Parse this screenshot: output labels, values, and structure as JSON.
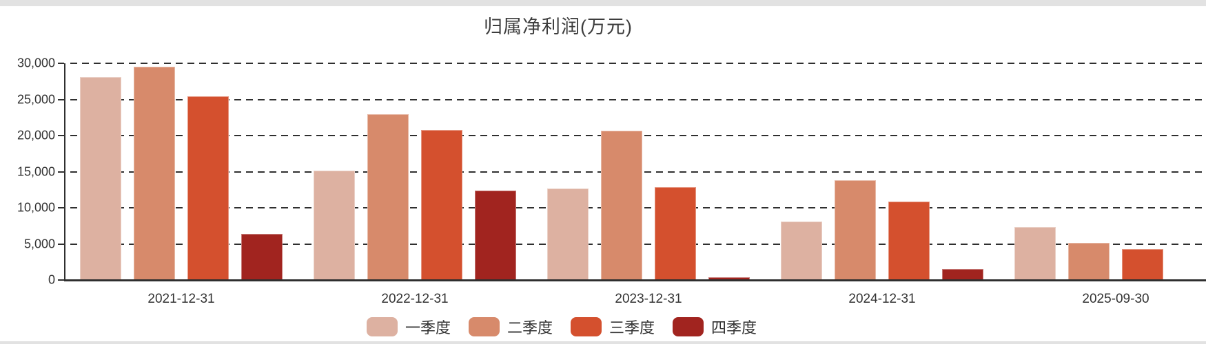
{
  "chart_data": {
    "type": "bar",
    "title": "归属净利润(万元)",
    "categories": [
      "2021-12-31",
      "2022-12-31",
      "2023-12-31",
      "2024-12-31",
      "2025-09-30"
    ],
    "series": [
      {
        "name": "一季度",
        "color": "#DDB1A1",
        "values": [
          28100,
          15100,
          12700,
          8100,
          7300
        ]
      },
      {
        "name": "二季度",
        "color": "#D78A6B",
        "values": [
          29500,
          23000,
          20700,
          13800,
          5100
        ]
      },
      {
        "name": "三季度",
        "color": "#D4502E",
        "values": [
          25400,
          20800,
          12900,
          10900,
          4300
        ]
      },
      {
        "name": "四季度",
        "color": "#A1241F",
        "values": [
          6400,
          12400,
          400,
          1500,
          null
        ]
      }
    ],
    "ylim": [
      0,
      30000
    ],
    "ytick_step": 5000,
    "ytick_labels": [
      "0",
      "5,000",
      "10,000",
      "15,000",
      "20,000",
      "25,000",
      "30,000"
    ],
    "grid": "horizontal dashed lines, dark gray",
    "legend_position": "bottom center",
    "legend_labels": [
      "一季度",
      "二季度",
      "三季度",
      "四季度"
    ],
    "axis_color": "#2f2f2f",
    "text_color": "#333333",
    "background_color": "#ffffff"
  }
}
